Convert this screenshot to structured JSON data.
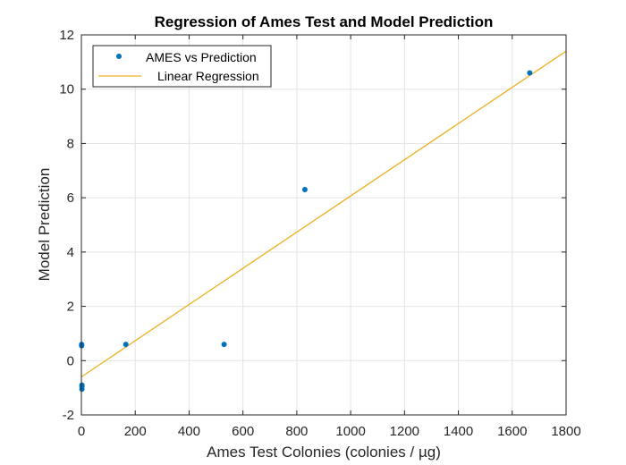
{
  "chart_data": {
    "type": "scatter",
    "title": "Regression of Ames Test and Model Prediction",
    "xlabel": "Ames Test Colonies (colonies / µg)",
    "ylabel": "Model Prediction",
    "xlim": [
      0,
      1800
    ],
    "ylim": [
      -2,
      12
    ],
    "xticks": [
      0,
      200,
      400,
      600,
      800,
      1000,
      1200,
      1400,
      1600,
      1800
    ],
    "yticks": [
      -2,
      0,
      2,
      4,
      6,
      8,
      10,
      12
    ],
    "xtick_labels": [
      "0",
      "200",
      "400",
      "600",
      "800",
      "1000",
      "1200",
      "1400",
      "1600",
      "1800"
    ],
    "ytick_labels": [
      "-2",
      "0",
      "2",
      "4",
      "6",
      "8",
      "10",
      "12"
    ],
    "grid": true,
    "legend_position": "top-left",
    "series": [
      {
        "name": "AMES vs Prediction",
        "kind": "scatter",
        "color": "#0072BD",
        "x": [
          1,
          1,
          2,
          2,
          2,
          165,
          530,
          830,
          1665
        ],
        "y": [
          0.55,
          0.6,
          -0.95,
          -1.05,
          -0.9,
          0.6,
          0.6,
          6.3,
          10.6
        ]
      },
      {
        "name": "Linear Regression",
        "kind": "line",
        "color": "#EDB120",
        "x": [
          0,
          1800
        ],
        "y": [
          -0.6,
          11.4
        ]
      }
    ]
  }
}
